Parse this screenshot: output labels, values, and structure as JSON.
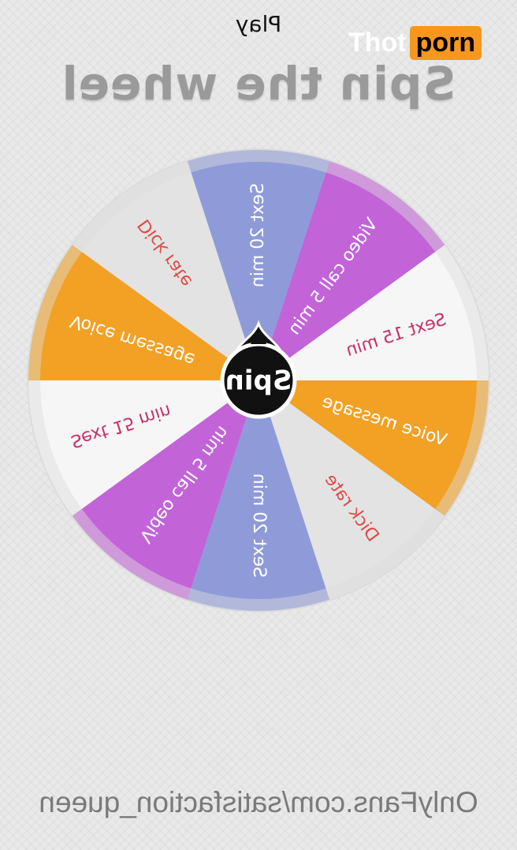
{
  "header": {
    "play_label": "Play",
    "title": "Spin the wheel"
  },
  "wheel": {
    "center_label": "Spin",
    "segments": [
      {
        "label": "Sext 20 min",
        "color": "#8f9bd9",
        "text_color": "#ffffff"
      },
      {
        "label": "Dick rate",
        "color": "#e3e3e3",
        "text_color": "#de4a45"
      },
      {
        "label": "Voice message",
        "color": "#f2a125",
        "text_color": "#ffffff"
      },
      {
        "label": "Sext 15 min",
        "color": "#f6f6f6",
        "text_color": "#c8306a"
      },
      {
        "label": "Video call 5 min",
        "color": "#c264d8",
        "text_color": "#ffffff"
      },
      {
        "label": "Sext 20 min",
        "color": "#8f9bd9",
        "text_color": "#ffffff"
      },
      {
        "label": "Dick rate",
        "color": "#e3e3e3",
        "text_color": "#de4a45"
      },
      {
        "label": "Voice message",
        "color": "#f2a125",
        "text_color": "#ffffff"
      },
      {
        "label": "Sext 15 min",
        "color": "#f6f6f6",
        "text_color": "#c8306a"
      },
      {
        "label": "Video call 5 min",
        "color": "#c264d8",
        "text_color": "#ffffff"
      }
    ]
  },
  "footer": {
    "text": "OnlyFans.com/satisfaction_queen"
  },
  "watermark": {
    "part1": "Thot",
    "part2": "porn",
    "accent": "#f7971d"
  }
}
